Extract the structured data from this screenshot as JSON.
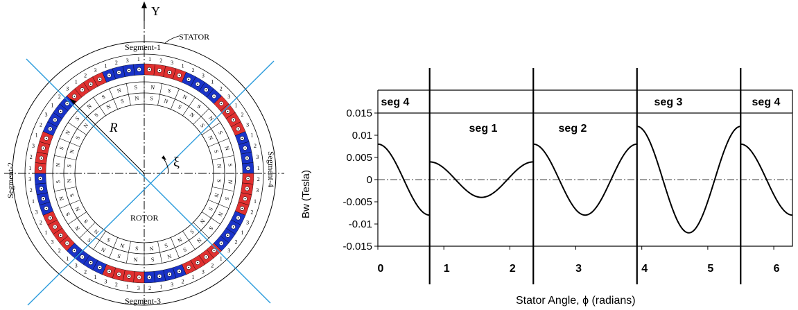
{
  "colors": {
    "red_magnet": "#e03030",
    "blue_magnet": "#1a33c8",
    "cut_lines": "#2a9bdc",
    "black": "#000000"
  },
  "diagram": {
    "y_axis_label": "Y",
    "stator_label": "STATOR",
    "rotor_label": "ROTOR",
    "radius_label": "R",
    "angle_label": "ξ",
    "segments": [
      "Segment-1",
      "Segment-2",
      "Segment-3",
      "Segment-4"
    ],
    "coil_numbers": [
      "1",
      "2",
      "3"
    ],
    "pole_letters": [
      "N",
      "S"
    ]
  },
  "chart_data": {
    "type": "line",
    "xlabel": "Stator Angle, ϕ (radians)",
    "ylabel": "Bw  (Tesla)",
    "xlim": [
      0,
      6.283
    ],
    "ylim": [
      -0.015,
      0.015
    ],
    "x_ticks": [
      "0",
      "1",
      "2",
      "3",
      "4",
      "5",
      "6"
    ],
    "y_ticks": [
      "0.015",
      "0.01",
      "0.005",
      "0",
      "-0.005",
      "-0.01",
      "-0.015"
    ],
    "y_tick_values": [
      0.015,
      0.01,
      0.005,
      0,
      -0.005,
      -0.01,
      -0.015
    ],
    "x_tick_values": [
      0,
      1,
      2,
      3,
      4,
      5,
      6
    ],
    "segment_labels": [
      "seg 4",
      "seg 1",
      "seg 2",
      "seg 3",
      "seg 4"
    ],
    "segment_boundaries": [
      0.785,
      2.356,
      3.927,
      5.498
    ],
    "segments": [
      {
        "name": "seg 4",
        "x_start": 0,
        "x_end": 0.785,
        "amplitude": 0.008,
        "phase_ref": 0
      },
      {
        "name": "seg 1",
        "x_start": 0.785,
        "x_end": 2.356,
        "amplitude": 0.004,
        "phase_ref": 0.785
      },
      {
        "name": "seg 2",
        "x_start": 2.356,
        "x_end": 3.927,
        "amplitude": 0.008,
        "phase_ref": 2.356
      },
      {
        "name": "seg 3",
        "x_start": 3.927,
        "x_end": 5.498,
        "amplitude": 0.012,
        "phase_ref": 3.927
      },
      {
        "name": "seg 4",
        "x_start": 5.498,
        "x_end": 6.283,
        "amplitude": 0.008,
        "phase_ref": 5.498
      }
    ],
    "harmonic": 4
  }
}
